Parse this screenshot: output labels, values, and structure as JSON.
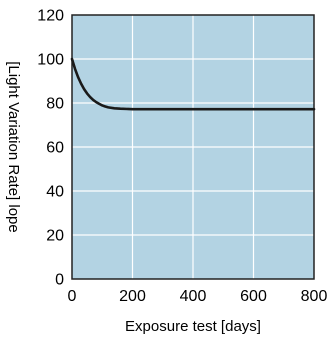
{
  "chart_data": {
    "type": "line",
    "title": "",
    "xlabel": "Exposure test [days]",
    "ylabel": "[Light Variation Rate] lope",
    "xlim": [
      0,
      800
    ],
    "ylim": [
      0,
      120
    ],
    "x_ticks": [
      0,
      200,
      400,
      600,
      800
    ],
    "y_ticks": [
      0,
      20,
      40,
      60,
      80,
      100,
      120
    ],
    "x_tick_labels": [
      "0",
      "200",
      "400",
      "600",
      "800"
    ],
    "y_tick_labels": [
      "0",
      "20",
      "40",
      "60",
      "80",
      "100",
      "120"
    ],
    "grid": true,
    "legend": "none",
    "series": [
      {
        "x": [
          0,
          10,
          20,
          30,
          40,
          50,
          60,
          70,
          80,
          90,
          100,
          110,
          120,
          140,
          160,
          200,
          300,
          400,
          500,
          600,
          700,
          800
        ],
        "y": [
          100,
          95.5,
          91.8,
          88.8,
          86.3,
          84.3,
          82.7,
          81.4,
          80.4,
          79.6,
          78.9,
          78.4,
          78,
          77.6,
          77.4,
          77.2,
          77.2,
          77.2,
          77.2,
          77.2,
          77.2,
          77.2
        ],
        "color": "#1a1a1a"
      }
    ],
    "colors": {
      "plot_background": "#b3d3e3",
      "grid": "#ffffff",
      "axis": "#222222",
      "line": "#1a1a1a"
    }
  }
}
